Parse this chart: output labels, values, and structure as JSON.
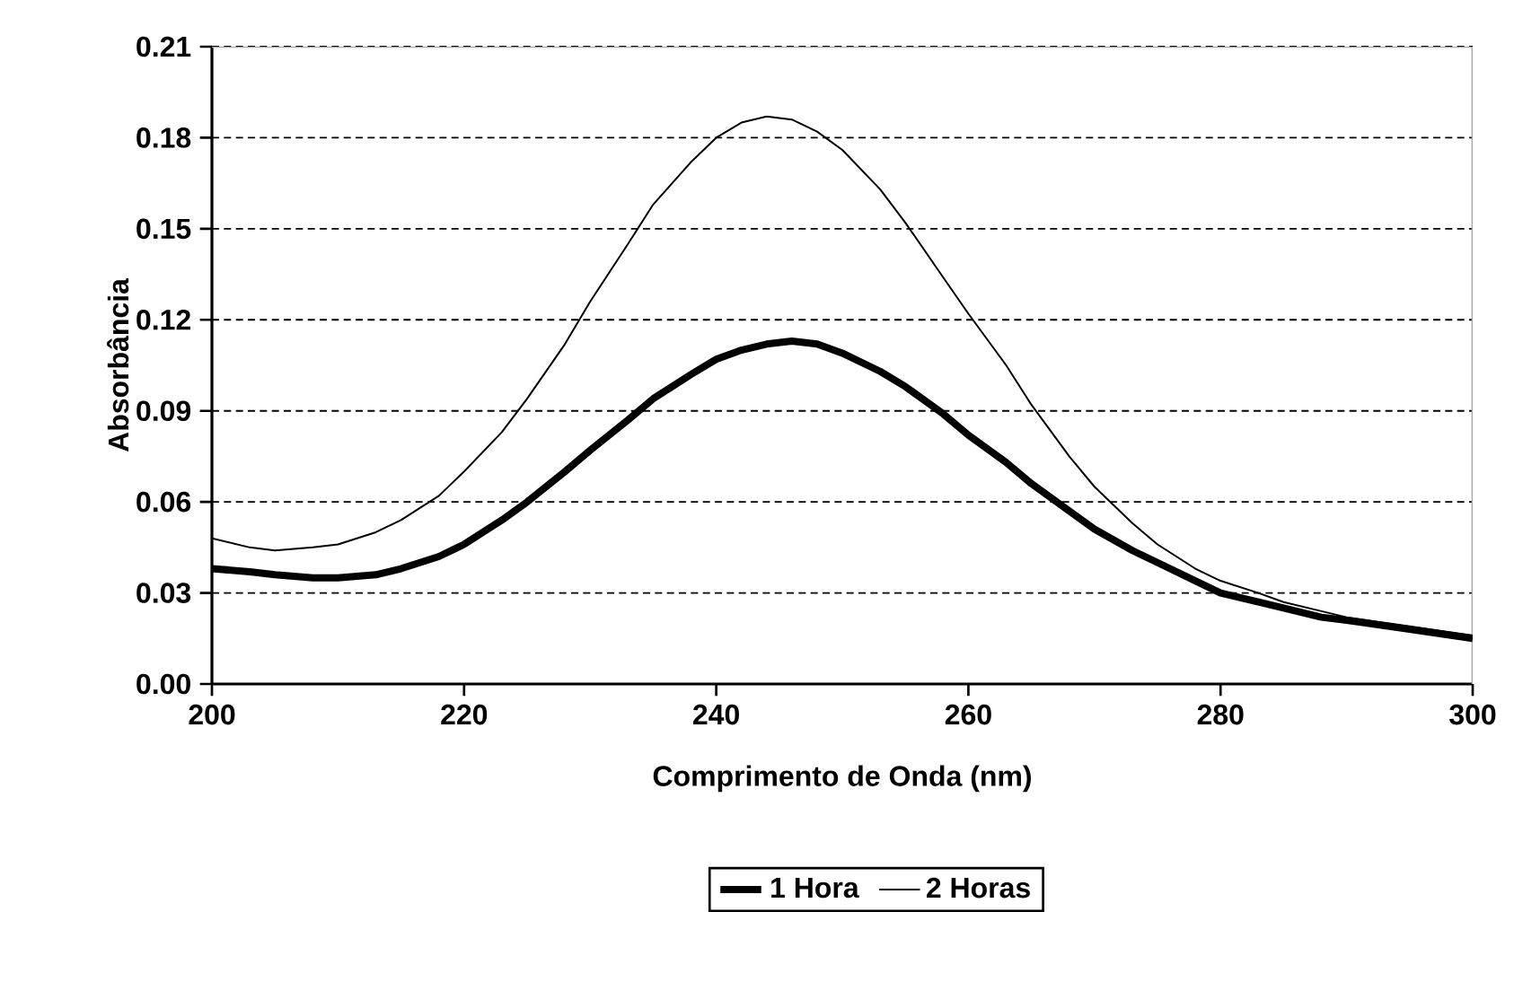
{
  "chart_data": {
    "type": "line",
    "xlabel": "Comprimento de Onda (nm)",
    "ylabel": "Absorbância",
    "x": [
      200,
      203,
      205,
      208,
      210,
      213,
      215,
      218,
      220,
      223,
      225,
      228,
      230,
      233,
      235,
      238,
      240,
      242,
      244,
      246,
      248,
      250,
      253,
      255,
      258,
      260,
      263,
      265,
      268,
      270,
      273,
      275,
      278,
      280,
      283,
      285,
      288,
      290,
      295,
      300
    ],
    "series": [
      {
        "name": "1 Hora",
        "color": "#000000",
        "values": [
          0.038,
          0.037,
          0.036,
          0.035,
          0.035,
          0.036,
          0.038,
          0.042,
          0.046,
          0.054,
          0.06,
          0.07,
          0.077,
          0.087,
          0.094,
          0.102,
          0.107,
          0.11,
          0.112,
          0.113,
          0.112,
          0.109,
          0.103,
          0.098,
          0.089,
          0.082,
          0.073,
          0.066,
          0.057,
          0.051,
          0.044,
          0.04,
          0.034,
          0.03,
          0.027,
          0.025,
          0.022,
          0.021,
          0.018,
          0.015
        ]
      },
      {
        "name": "2 Horas",
        "color": "#000000",
        "values": [
          0.048,
          0.045,
          0.044,
          0.045,
          0.046,
          0.05,
          0.054,
          0.062,
          0.07,
          0.083,
          0.094,
          0.112,
          0.126,
          0.145,
          0.158,
          0.172,
          0.18,
          0.185,
          0.187,
          0.186,
          0.182,
          0.176,
          0.163,
          0.152,
          0.134,
          0.122,
          0.105,
          0.092,
          0.075,
          0.065,
          0.053,
          0.046,
          0.038,
          0.034,
          0.03,
          0.027,
          0.024,
          0.022,
          0.019,
          0.016
        ]
      }
    ],
    "xlim": [
      200,
      300
    ],
    "xticks": [
      200,
      220,
      240,
      260,
      280,
      300
    ],
    "ylim": [
      0,
      0.21
    ],
    "yticks": [
      {
        "value": 0,
        "label": "0.00"
      },
      {
        "value": 0.03,
        "label": "0.03"
      },
      {
        "value": 0.06,
        "label": "0.06"
      },
      {
        "value": 0.09,
        "label": "0.09"
      },
      {
        "value": 0.12,
        "label": "0.12"
      },
      {
        "value": 0.15,
        "label": "0.15"
      },
      {
        "value": 0.18,
        "label": "0.18"
      },
      {
        "value": 0.21,
        "label": "0.21"
      }
    ],
    "grid": "y",
    "legend": "bottom",
    "marker": "none",
    "line_style": "solid"
  }
}
